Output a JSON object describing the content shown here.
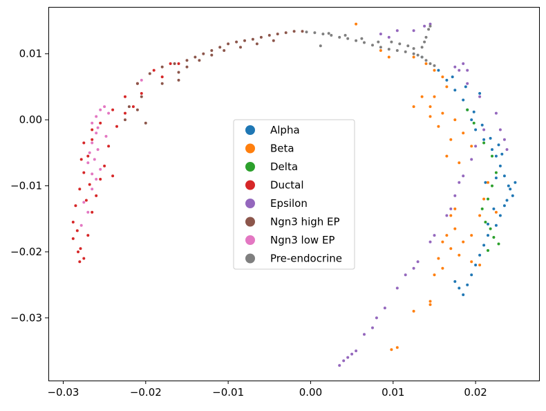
{
  "chart_data": {
    "type": "scatter",
    "title": "",
    "xlabel": "",
    "ylabel": "",
    "xlim": [
      -0.0318,
      0.0277
    ],
    "ylim": [
      -0.0395,
      0.0171
    ],
    "grid": false,
    "legend_placement": "center",
    "x_ticks": [
      {
        "value": -0.03,
        "label": "−0.03"
      },
      {
        "value": -0.02,
        "label": "−0.02"
      },
      {
        "value": -0.01,
        "label": "−0.01"
      },
      {
        "value": 0.0,
        "label": "0.00"
      },
      {
        "value": 0.01,
        "label": "0.01"
      },
      {
        "value": 0.02,
        "label": "0.02"
      }
    ],
    "y_ticks": [
      {
        "value": 0.01,
        "label": "0.01"
      },
      {
        "value": 0.0,
        "label": "0.00"
      },
      {
        "value": -0.01,
        "label": "−0.01"
      },
      {
        "value": -0.02,
        "label": "−0.02"
      },
      {
        "value": -0.03,
        "label": "−0.03"
      }
    ],
    "series": [
      {
        "name": "Alpha",
        "color": "#1f77b4",
        "points": [
          [
            0.0135,
            0.0095
          ],
          [
            0.0155,
            0.0075
          ],
          [
            0.0165,
            0.006
          ],
          [
            0.0175,
            0.0045
          ],
          [
            0.0185,
            0.003
          ],
          [
            0.019,
            0.0015
          ],
          [
            0.0195,
            0.0
          ],
          [
            0.02,
            -0.0015
          ],
          [
            0.021,
            -0.003
          ],
          [
            0.022,
            -0.0045
          ],
          [
            0.0225,
            -0.0055
          ],
          [
            0.023,
            -0.007
          ],
          [
            0.0235,
            -0.0085
          ],
          [
            0.024,
            -0.01
          ],
          [
            0.0245,
            -0.0115
          ],
          [
            0.0235,
            -0.013
          ],
          [
            0.023,
            -0.0145
          ],
          [
            0.0225,
            -0.016
          ],
          [
            0.0215,
            -0.0175
          ],
          [
            0.021,
            -0.019
          ],
          [
            0.0205,
            -0.0205
          ],
          [
            0.02,
            -0.022
          ],
          [
            0.0195,
            -0.0235
          ],
          [
            0.019,
            -0.025
          ],
          [
            0.0185,
            -0.0265
          ],
          [
            0.018,
            -0.0255
          ],
          [
            0.0175,
            -0.0245
          ],
          [
            0.0248,
            -0.0095
          ],
          [
            0.0242,
            -0.0105
          ],
          [
            0.0238,
            -0.0122
          ],
          [
            0.0232,
            -0.0052
          ],
          [
            0.0228,
            -0.0038
          ],
          [
            0.0218,
            -0.0028
          ],
          [
            0.0208,
            -0.0008
          ],
          [
            0.0198,
            0.0012
          ],
          [
            0.0222,
            -0.0135
          ],
          [
            0.0215,
            -0.0158
          ],
          [
            0.0212,
            -0.0095
          ],
          [
            0.0225,
            -0.0088
          ],
          [
            0.0205,
            0.004
          ],
          [
            0.0188,
            0.005
          ],
          [
            0.0172,
            0.0065
          ]
        ]
      },
      {
        "name": "Beta",
        "color": "#ff7f0e",
        "points": [
          [
            0.0125,
            0.0095
          ],
          [
            0.014,
            0.0085
          ],
          [
            0.015,
            0.0075
          ],
          [
            0.016,
            0.0065
          ],
          [
            0.0165,
            0.005
          ],
          [
            0.015,
            0.0035
          ],
          [
            0.0145,
            0.002
          ],
          [
            0.016,
            0.001
          ],
          [
            0.0175,
            0.0
          ],
          [
            0.0185,
            -0.002
          ],
          [
            0.0195,
            -0.004
          ],
          [
            0.017,
            -0.003
          ],
          [
            0.0155,
            -0.001
          ],
          [
            0.0145,
            0.0005
          ],
          [
            0.0165,
            -0.0055
          ],
          [
            0.018,
            -0.0065
          ],
          [
            0.0175,
            -0.0165
          ],
          [
            0.0165,
            -0.0175
          ],
          [
            0.016,
            -0.0185
          ],
          [
            0.017,
            -0.0195
          ],
          [
            0.0155,
            -0.021
          ],
          [
            0.016,
            -0.0225
          ],
          [
            0.015,
            -0.0235
          ],
          [
            0.0195,
            -0.0215
          ],
          [
            0.0205,
            -0.022
          ],
          [
            0.018,
            -0.0205
          ],
          [
            0.0145,
            -0.028
          ],
          [
            0.0145,
            -0.0275
          ],
          [
            0.0125,
            -0.029
          ],
          [
            0.0105,
            -0.0345
          ],
          [
            0.0098,
            -0.0348
          ],
          [
            0.0055,
            0.0145
          ],
          [
            0.0085,
            0.0105
          ],
          [
            0.0095,
            0.0095
          ],
          [
            0.0135,
            0.0035
          ],
          [
            0.0125,
            0.002
          ],
          [
            0.0215,
            -0.0095
          ],
          [
            0.021,
            -0.012
          ],
          [
            0.0225,
            -0.014
          ],
          [
            0.0205,
            -0.0145
          ],
          [
            0.0195,
            -0.0175
          ],
          [
            0.0185,
            -0.0185
          ],
          [
            0.0175,
            -0.0135
          ],
          [
            0.017,
            -0.0145
          ]
        ]
      },
      {
        "name": "Delta",
        "color": "#2ca02c",
        "points": [
          [
            0.019,
            0.0015
          ],
          [
            0.0198,
            -0.0005
          ],
          [
            0.021,
            -0.0035
          ],
          [
            0.022,
            -0.0055
          ],
          [
            0.0225,
            -0.008
          ],
          [
            0.022,
            -0.01
          ],
          [
            0.0215,
            -0.012
          ],
          [
            0.0208,
            -0.0135
          ],
          [
            0.0212,
            -0.0155
          ],
          [
            0.0218,
            -0.0165
          ],
          [
            0.0222,
            -0.0178
          ],
          [
            0.0228,
            -0.0188
          ],
          [
            0.0215,
            -0.0198
          ]
        ]
      },
      {
        "name": "Ductal",
        "color": "#d62728",
        "points": [
          [
            -0.017,
            0.0085
          ],
          [
            -0.019,
            0.0075
          ],
          [
            -0.021,
            0.0055
          ],
          [
            -0.0225,
            0.0035
          ],
          [
            -0.024,
            0.0015
          ],
          [
            -0.0255,
            -0.0005
          ],
          [
            -0.0265,
            -0.003
          ],
          [
            -0.027,
            -0.0055
          ],
          [
            -0.0275,
            -0.008
          ],
          [
            -0.028,
            -0.0105
          ],
          [
            -0.0285,
            -0.013
          ],
          [
            -0.0288,
            -0.0155
          ],
          [
            -0.0288,
            -0.018
          ],
          [
            -0.0282,
            -0.02
          ],
          [
            -0.028,
            -0.0215
          ],
          [
            -0.0275,
            -0.021
          ],
          [
            -0.027,
            -0.0175
          ],
          [
            -0.0265,
            -0.014
          ],
          [
            -0.026,
            -0.0115
          ],
          [
            -0.0255,
            -0.009
          ],
          [
            -0.025,
            -0.007
          ],
          [
            -0.024,
            -0.0085
          ],
          [
            -0.0245,
            -0.004
          ],
          [
            -0.0235,
            -0.001
          ],
          [
            -0.0225,
            0.001
          ],
          [
            -0.0215,
            0.002
          ],
          [
            -0.0205,
            0.004
          ],
          [
            -0.018,
            0.0065
          ],
          [
            -0.016,
            0.0085
          ],
          [
            -0.0265,
            -0.0015
          ],
          [
            -0.0275,
            -0.0035
          ],
          [
            -0.0278,
            -0.006
          ],
          [
            -0.0268,
            -0.0098
          ],
          [
            -0.0272,
            -0.0122
          ],
          [
            -0.0283,
            -0.0168
          ],
          [
            -0.0279,
            -0.0195
          ]
        ]
      },
      {
        "name": "Epsilon",
        "color": "#9467bd",
        "points": [
          [
            0.0035,
            -0.0372
          ],
          [
            0.004,
            -0.0365
          ],
          [
            0.0045,
            -0.036
          ],
          [
            0.005,
            -0.0355
          ],
          [
            0.0055,
            -0.035
          ],
          [
            0.0065,
            -0.0325
          ],
          [
            0.0075,
            -0.0315
          ],
          [
            0.008,
            -0.03
          ],
          [
            0.009,
            -0.0285
          ],
          [
            0.0105,
            -0.0255
          ],
          [
            0.0115,
            -0.0235
          ],
          [
            0.0125,
            -0.0225
          ],
          [
            0.013,
            -0.0215
          ],
          [
            0.0145,
            -0.0185
          ],
          [
            0.015,
            -0.0175
          ],
          [
            0.0165,
            -0.0145
          ],
          [
            0.017,
            -0.0135
          ],
          [
            0.0175,
            -0.0115
          ],
          [
            0.018,
            -0.0095
          ],
          [
            0.0185,
            -0.0085
          ],
          [
            0.0195,
            -0.006
          ],
          [
            0.02,
            -0.004
          ],
          [
            0.021,
            -0.0015
          ],
          [
            0.0225,
            0.001
          ],
          [
            0.023,
            -0.0015
          ],
          [
            0.0235,
            -0.003
          ],
          [
            0.0238,
            -0.0045
          ],
          [
            0.0205,
            0.0035
          ],
          [
            0.019,
            0.0055
          ],
          [
            0.018,
            0.0075
          ],
          [
            0.0175,
            0.008
          ],
          [
            0.0185,
            0.0085
          ],
          [
            0.019,
            0.0075
          ],
          [
            0.0125,
            0.0135
          ],
          [
            0.0105,
            0.0135
          ],
          [
            0.0095,
            0.0125
          ],
          [
            0.0085,
            0.013
          ],
          [
            0.0145,
            0.0145
          ],
          [
            0.0138,
            0.0142
          ]
        ]
      },
      {
        "name": "Ngn3 high EP",
        "color": "#8c564b",
        "points": [
          [
            -0.021,
            0.0055
          ],
          [
            -0.0195,
            0.007
          ],
          [
            -0.018,
            0.008
          ],
          [
            -0.0165,
            0.0085
          ],
          [
            -0.015,
            0.009
          ],
          [
            -0.014,
            0.0095
          ],
          [
            -0.013,
            0.01
          ],
          [
            -0.012,
            0.0105
          ],
          [
            -0.011,
            0.011
          ],
          [
            -0.01,
            0.0115
          ],
          [
            -0.009,
            0.0118
          ],
          [
            -0.008,
            0.012
          ],
          [
            -0.007,
            0.0122
          ],
          [
            -0.006,
            0.0125
          ],
          [
            -0.005,
            0.0128
          ],
          [
            -0.004,
            0.013
          ],
          [
            -0.003,
            0.0132
          ],
          [
            -0.002,
            0.0134
          ],
          [
            -0.001,
            0.0134
          ],
          [
            -0.012,
            0.0098
          ],
          [
            -0.0135,
            0.009
          ],
          [
            -0.015,
            0.008
          ],
          [
            -0.016,
            0.006
          ],
          [
            -0.018,
            0.0055
          ],
          [
            -0.0205,
            0.0035
          ],
          [
            -0.021,
            0.0015
          ],
          [
            -0.0225,
            0.0
          ],
          [
            -0.02,
            -0.0005
          ],
          [
            -0.022,
            0.002
          ],
          [
            -0.0105,
            0.0105
          ],
          [
            -0.0085,
            0.011
          ],
          [
            -0.0065,
            0.0115
          ],
          [
            -0.0045,
            0.012
          ],
          [
            -0.016,
            0.0072
          ]
        ]
      },
      {
        "name": "Ngn3 low EP",
        "color": "#e377c2",
        "points": [
          [
            -0.0255,
            0.0015
          ],
          [
            -0.026,
            0.0005
          ],
          [
            -0.0265,
            -0.0005
          ],
          [
            -0.026,
            -0.002
          ],
          [
            -0.0265,
            -0.0035
          ],
          [
            -0.0268,
            -0.005
          ],
          [
            -0.027,
            -0.0065
          ],
          [
            -0.0262,
            -0.006
          ],
          [
            -0.0255,
            -0.0075
          ],
          [
            -0.026,
            -0.009
          ],
          [
            -0.0265,
            -0.0105
          ],
          [
            -0.0275,
            -0.0125
          ],
          [
            -0.027,
            -0.014
          ],
          [
            -0.0278,
            -0.016
          ],
          [
            -0.025,
            0.002
          ],
          [
            -0.0245,
            0.001
          ],
          [
            -0.0258,
            -0.0012
          ],
          [
            -0.0248,
            -0.0025
          ],
          [
            -0.0258,
            -0.0045
          ],
          [
            -0.0265,
            -0.0082
          ],
          [
            -0.0205,
            0.006
          ]
        ]
      },
      {
        "name": "Pre-endocrine",
        "color": "#7f7f7f",
        "points": [
          [
            -0.0005,
            0.0133
          ],
          [
            0.0005,
            0.0132
          ],
          [
            0.0015,
            0.013
          ],
          [
            0.0025,
            0.0128
          ],
          [
            0.0035,
            0.0125
          ],
          [
            0.0045,
            0.0123
          ],
          [
            0.0055,
            0.012
          ],
          [
            0.0065,
            0.0117
          ],
          [
            0.0075,
            0.0113
          ],
          [
            0.0085,
            0.011
          ],
          [
            0.0095,
            0.0107
          ],
          [
            0.0105,
            0.0105
          ],
          [
            0.0115,
            0.0103
          ],
          [
            0.0125,
            0.01
          ],
          [
            0.013,
            0.0098
          ],
          [
            0.0135,
            0.0095
          ],
          [
            0.014,
            0.009
          ],
          [
            0.0145,
            0.0085
          ],
          [
            0.015,
            0.0082
          ],
          [
            0.0125,
            0.0108
          ],
          [
            0.0118,
            0.0112
          ],
          [
            0.0108,
            0.0115
          ],
          [
            0.0098,
            0.0118
          ],
          [
            0.0135,
            0.011
          ],
          [
            0.014,
            0.0125
          ],
          [
            0.0145,
            0.0142
          ],
          [
            0.0143,
            0.0137
          ],
          [
            0.0138,
            0.0118
          ],
          [
            0.0082,
            0.0118
          ],
          [
            0.0062,
            0.0123
          ],
          [
            0.0042,
            0.0128
          ],
          [
            0.0022,
            0.0131
          ],
          [
            0.0012,
            0.0112
          ]
        ]
      }
    ]
  }
}
